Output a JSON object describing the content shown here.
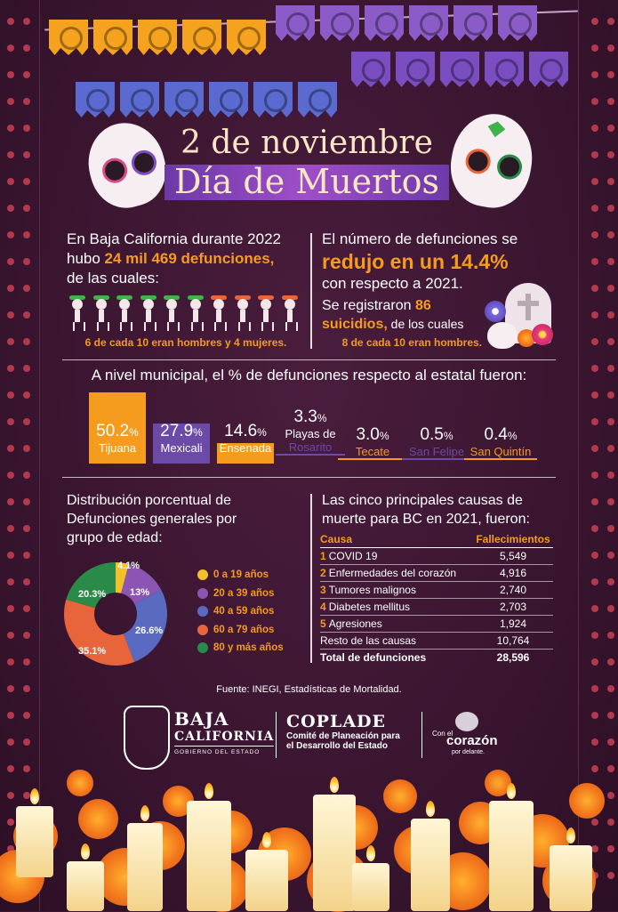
{
  "title": {
    "line1": "2 de noviembre",
    "line2": "Día de Muertos"
  },
  "left_intro": {
    "line1": "En Baja California durante 2022",
    "line2_prefix": "hubo ",
    "line2_highlight": "24 mil 469 defunciones,",
    "line3": "de las cuales:",
    "caption": "6 de cada 10 eran hombres y 4 mujeres."
  },
  "right_intro": {
    "line1": "El número de defunciones se",
    "highlight": "redujo en un 14.4%",
    "line3": "con respecto a 2021.",
    "suicide_prefix": "Se registraron ",
    "suicide_highlight1": "86",
    "suicide_highlight2": "suicidios,",
    "suicide_suffix": " de los cuales",
    "caption": "8 de cada 10 eran hombres."
  },
  "municipal": {
    "heading": "A nivel municipal, el % de defunciones respecto al estatal fueron:",
    "items": [
      {
        "pct": "50.2",
        "unit": "%",
        "name": "Tijuana",
        "share": 50.2,
        "color": "#f59b1e"
      },
      {
        "pct": "27.9",
        "unit": "%",
        "name": "Mexicali",
        "share": 27.9,
        "color": "#6b4aa8"
      },
      {
        "pct": "14.6",
        "unit": "%",
        "name": "Ensenada",
        "share": 14.6,
        "color": "#f59b1e"
      },
      {
        "pct": "3.3",
        "unit": "%",
        "name_line1": "Playas de",
        "name": "Rosarito",
        "share": 3.3,
        "color": "#6b4aa8"
      },
      {
        "pct": "3.0",
        "unit": "%",
        "name": "Tecate",
        "share": 3.0,
        "color": "#f59b1e"
      },
      {
        "pct": "0.5",
        "unit": "%",
        "name": "San Felipe",
        "share": 0.5,
        "color": "#6b4aa8"
      },
      {
        "pct": "0.4",
        "unit": "%",
        "name": "San Quintín",
        "share": 0.4,
        "color": "#f59b1e"
      }
    ]
  },
  "age_distribution": {
    "heading_line1": "Distribución porcentual de",
    "heading_line2": "Defunciones generales por",
    "heading_line3": "grupo de edad:",
    "slices": [
      {
        "label": "0 a 19 años",
        "value": 4.1,
        "text": "4.1%",
        "color": "#f2c02a"
      },
      {
        "label": "20 a 39 años",
        "value": 13.0,
        "text": "13%",
        "color": "#8c55b4"
      },
      {
        "label": "40 a 59 años",
        "value": 26.6,
        "text": "26.6%",
        "color": "#5a6ac0"
      },
      {
        "label": "60 a 79 años",
        "value": 35.1,
        "text": "35.1%",
        "color": "#e8643a"
      },
      {
        "label": "80 y más años",
        "value": 20.3,
        "text": "20.3%",
        "color": "#2a8a48"
      }
    ]
  },
  "causes": {
    "heading_line1": "Las cinco principales causas de",
    "heading_line2": "muerte para BC en 2021, fueron:",
    "col1": "Causa",
    "col2": "Fallecimientos",
    "rows": [
      {
        "n": "1",
        "cause": "COVID 19",
        "count": "5,549"
      },
      {
        "n": "2",
        "cause": "Enfermedades del corazón",
        "count": "4,916"
      },
      {
        "n": "3",
        "cause": "Tumores malignos",
        "count": "2,740"
      },
      {
        "n": "4",
        "cause": "Diabetes mellitus",
        "count": "2,703"
      },
      {
        "n": "5",
        "cause": "Agresiones",
        "count": "1,924"
      }
    ],
    "rest_label": "Resto de las causas",
    "rest_count": "10,764",
    "total_label": "Total de defunciones",
    "total_count": "28,596"
  },
  "source": "Fuente: INEGI, Estadísticas de Mortalidad.",
  "logos": {
    "bc_line1": "BAJA",
    "bc_line2": "CALIFORNIA",
    "bc_line3": "GOBIERNO DEL ESTADO",
    "coplade_title": "COPLADE",
    "coplade_line1": "Comité de Planeación para",
    "coplade_line2": "el Desarrollo del Estado",
    "corazon_line1": "Con el",
    "corazon_line2": "corazón",
    "corazon_line3": "por delante."
  },
  "colors": {
    "background": "#3a1530",
    "accent_orange": "#f59b1e",
    "accent_purple": "#6b4aa8"
  }
}
